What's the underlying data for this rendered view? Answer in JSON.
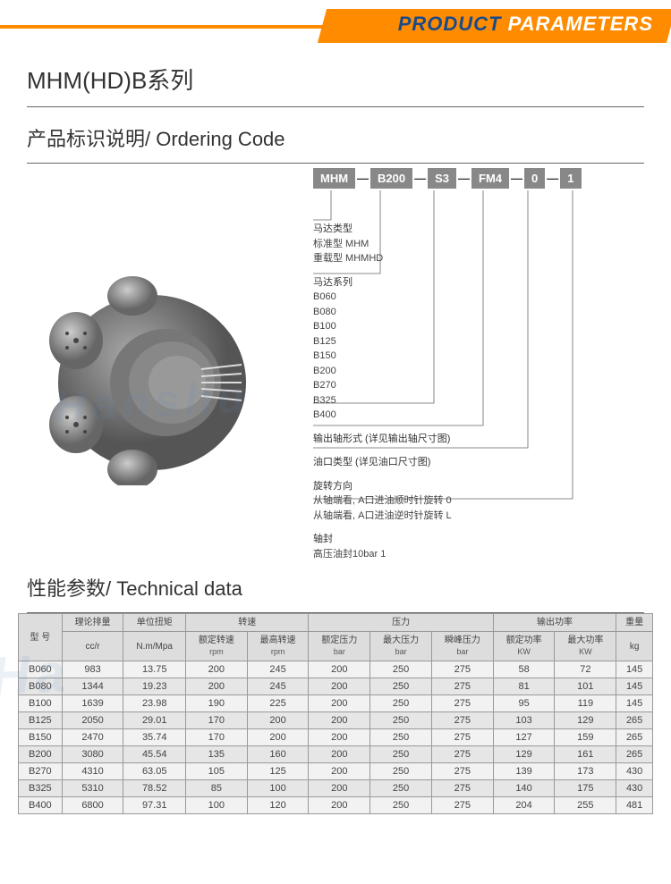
{
  "banner": {
    "part1": "PRODUCT",
    "part2": " PARAMETERS"
  },
  "series_title": "MHM(HD)B系列",
  "ordering_title": "产品标识说明/ Ordering Code",
  "codes": [
    "MHM",
    "B200",
    "S3",
    "FM4",
    "0",
    "1"
  ],
  "legend": [
    {
      "title": "马达类型",
      "lines": [
        "标准型  MHM",
        "重载型  MHMHD"
      ]
    },
    {
      "title": "马达系列",
      "lines": [
        "B060",
        "B080",
        "B100",
        "B125",
        "B150",
        "B200",
        "B270",
        "B325",
        "B400"
      ]
    },
    {
      "title": "输出轴形式 (详见输出轴尺寸图)",
      "lines": []
    },
    {
      "title": "油口类型 (详见油口尺寸图)",
      "lines": []
    },
    {
      "title": "旋转方向",
      "lines": [
        "从轴端看, A口进油顺时针旋转  0",
        "从轴端看, A口进油逆时针旋转  L"
      ]
    },
    {
      "title": "轴封",
      "lines": [
        "高压油封10bar  1"
      ]
    }
  ],
  "tech_title": "性能参数/ Technical data",
  "table": {
    "header_top": [
      "型 号",
      "理论排量",
      "单位扭矩",
      "转速",
      "",
      "压力",
      "",
      "",
      "输出功率",
      "",
      "重量"
    ],
    "header_units": [
      "",
      "cc/r",
      "N.m/Mpa",
      "额定转速",
      "最高转速",
      "额定压力",
      "最大压力",
      "瞬峰压力",
      "额定功率",
      "最大功率",
      "kg"
    ],
    "header_units2": [
      "",
      "",
      "",
      "rpm",
      "rpm",
      "bar",
      "bar",
      "bar",
      "KW",
      "KW",
      ""
    ],
    "rows": [
      [
        "B060",
        "983",
        "13.75",
        "200",
        "245",
        "200",
        "250",
        "275",
        "58",
        "72",
        "145"
      ],
      [
        "B080",
        "1344",
        "19.23",
        "200",
        "245",
        "200",
        "250",
        "275",
        "81",
        "101",
        "145"
      ],
      [
        "B100",
        "1639",
        "23.98",
        "190",
        "225",
        "200",
        "250",
        "275",
        "95",
        "119",
        "145"
      ],
      [
        "B125",
        "2050",
        "29.01",
        "170",
        "200",
        "200",
        "250",
        "275",
        "103",
        "129",
        "265"
      ],
      [
        "B150",
        "2470",
        "35.74",
        "170",
        "200",
        "200",
        "250",
        "275",
        "127",
        "159",
        "265"
      ],
      [
        "B200",
        "3080",
        "45.54",
        "135",
        "160",
        "200",
        "250",
        "275",
        "129",
        "161",
        "265"
      ],
      [
        "B270",
        "4310",
        "63.05",
        "105",
        "125",
        "200",
        "250",
        "275",
        "139",
        "173",
        "430"
      ],
      [
        "B325",
        "5310",
        "78.52",
        "85",
        "100",
        "200",
        "250",
        "275",
        "140",
        "175",
        "430"
      ],
      [
        "B400",
        "6800",
        "97.31",
        "100",
        "120",
        "200",
        "250",
        "275",
        "204",
        "255",
        "481"
      ]
    ]
  },
  "colors": {
    "orange": "#ff8c00",
    "blue": "#1a4a8a",
    "grey": "#888"
  }
}
